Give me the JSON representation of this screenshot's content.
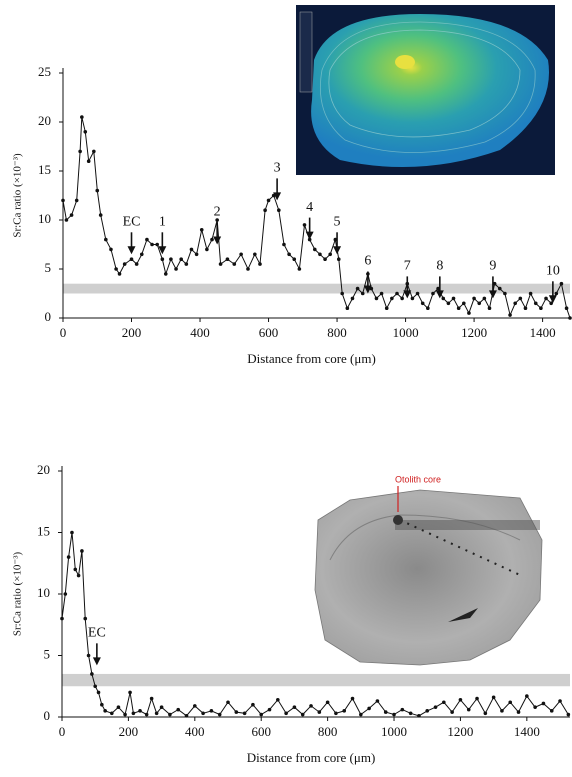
{
  "chart_data": [
    {
      "type": "line",
      "ylabel": "Sr:Ca ratio (×10⁻³)",
      "xlabel": "Distance from core (μm)",
      "color": "#111111",
      "x": [
        0,
        10,
        25,
        40,
        50,
        55,
        65,
        75,
        90,
        100,
        110,
        125,
        140,
        155,
        165,
        180,
        200,
        215,
        230,
        245,
        260,
        275,
        290,
        300,
        315,
        330,
        345,
        360,
        375,
        390,
        405,
        420,
        435,
        450,
        460,
        480,
        500,
        520,
        540,
        560,
        575,
        590,
        600,
        615,
        630,
        645,
        660,
        675,
        690,
        705,
        720,
        735,
        750,
        765,
        780,
        795,
        805,
        815,
        830,
        845,
        860,
        875,
        890,
        900,
        915,
        930,
        945,
        960,
        975,
        990,
        1005,
        1020,
        1035,
        1050,
        1065,
        1080,
        1095,
        1110,
        1125,
        1140,
        1155,
        1170,
        1185,
        1200,
        1215,
        1230,
        1245,
        1260,
        1275,
        1290,
        1305,
        1320,
        1335,
        1350,
        1365,
        1380,
        1395,
        1410,
        1425,
        1440,
        1455,
        1470,
        1480
      ],
      "values": [
        12,
        10,
        10.5,
        12,
        17,
        20.5,
        19,
        16,
        17,
        13,
        10.5,
        8,
        7,
        5,
        4.5,
        5.5,
        6,
        5.5,
        6.5,
        8,
        7.5,
        7.5,
        6,
        4.5,
        6,
        5,
        6,
        5.5,
        7,
        6.5,
        9,
        7,
        8,
        10,
        5.5,
        6,
        5.5,
        6.5,
        5,
        6.5,
        5.5,
        11,
        12,
        12.5,
        11,
        7.5,
        6.5,
        6,
        5,
        9.5,
        8,
        7,
        6.5,
        6,
        6.5,
        8,
        6,
        2.5,
        1,
        2,
        3,
        2.5,
        4.5,
        3,
        2,
        2.5,
        1,
        2,
        2.5,
        2,
        3.5,
        2,
        2.5,
        1.5,
        1,
        2.5,
        3,
        2,
        1.5,
        2,
        1,
        1.5,
        0.5,
        2,
        1.5,
        2,
        1,
        3.5,
        3,
        2.5,
        0.3,
        1.5,
        2,
        1,
        2.5,
        1.5,
        1,
        2,
        1.5,
        2.5,
        3.5,
        1,
        0
      ],
      "xlim": [
        0,
        1480
      ],
      "xticks": [
        0,
        200,
        400,
        600,
        800,
        1000,
        1200,
        1400
      ],
      "ylim": [
        0,
        25
      ],
      "yticks": [
        0,
        5,
        10,
        15,
        20,
        25
      ],
      "band": [
        2.5,
        3.5
      ],
      "annotations": [
        {
          "text": "EC",
          "x": 200,
          "y": 6.5
        },
        {
          "text": "1",
          "x": 290,
          "y": 6.5
        },
        {
          "text": "2",
          "x": 450,
          "y": 7.5
        },
        {
          "text": "3",
          "x": 625,
          "y": 12
        },
        {
          "text": "4",
          "x": 720,
          "y": 8
        },
        {
          "text": "5",
          "x": 800,
          "y": 6.5
        },
        {
          "text": "6",
          "x": 890,
          "y": 2.5
        },
        {
          "text": "7",
          "x": 1005,
          "y": 2
        },
        {
          "text": "8",
          "x": 1100,
          "y": 2
        },
        {
          "text": "9",
          "x": 1255,
          "y": 2
        },
        {
          "text": "10",
          "x": 1430,
          "y": 1.5
        }
      ]
    },
    {
      "type": "line",
      "ylabel": "Sr:Ca ratio (×10⁻³)",
      "xlabel": "Distance from core (μm)",
      "color": "#111111",
      "inset_label": "Otolith core",
      "x": [
        0,
        10,
        20,
        30,
        40,
        50,
        60,
        70,
        80,
        90,
        100,
        110,
        120,
        130,
        150,
        170,
        190,
        205,
        215,
        235,
        255,
        270,
        285,
        300,
        325,
        350,
        375,
        400,
        425,
        450,
        475,
        500,
        525,
        550,
        575,
        600,
        625,
        650,
        675,
        700,
        725,
        750,
        775,
        800,
        825,
        850,
        875,
        900,
        925,
        950,
        975,
        1000,
        1025,
        1050,
        1075,
        1100,
        1125,
        1150,
        1175,
        1200,
        1225,
        1250,
        1275,
        1300,
        1325,
        1350,
        1375,
        1400,
        1425,
        1450,
        1475,
        1500,
        1525
      ],
      "values": [
        8,
        10,
        13,
        15,
        12,
        11.5,
        13.5,
        8,
        5,
        3.5,
        2.5,
        2,
        1,
        0.5,
        0.3,
        0.8,
        0.2,
        2,
        0.3,
        0.5,
        0.2,
        1.5,
        0.3,
        0.8,
        0.2,
        0.6,
        0.1,
        0.9,
        0.3,
        0.5,
        0.2,
        1.2,
        0.4,
        0.3,
        1,
        0.2,
        0.6,
        1.4,
        0.3,
        0.8,
        0.2,
        0.9,
        0.4,
        1.2,
        0.3,
        0.5,
        1.5,
        0.2,
        0.7,
        1.3,
        0.4,
        0.2,
        0.6,
        0.3,
        0.1,
        0.5,
        0.8,
        1.2,
        0.4,
        1.4,
        0.6,
        1.5,
        0.3,
        1.6,
        0.5,
        1.2,
        0.4,
        1.7,
        0.8,
        1.1,
        0.5,
        1.3,
        0.2
      ],
      "xlim": [
        0,
        1530
      ],
      "xticks": [
        0,
        200,
        400,
        600,
        800,
        1000,
        1200,
        1400
      ],
      "ylim": [
        0,
        20
      ],
      "yticks": [
        0,
        5,
        10,
        15,
        20
      ],
      "band": [
        2.5,
        3.5
      ],
      "annotations": [
        {
          "text": "EC",
          "x": 105,
          "y": 4.2
        }
      ]
    }
  ]
}
